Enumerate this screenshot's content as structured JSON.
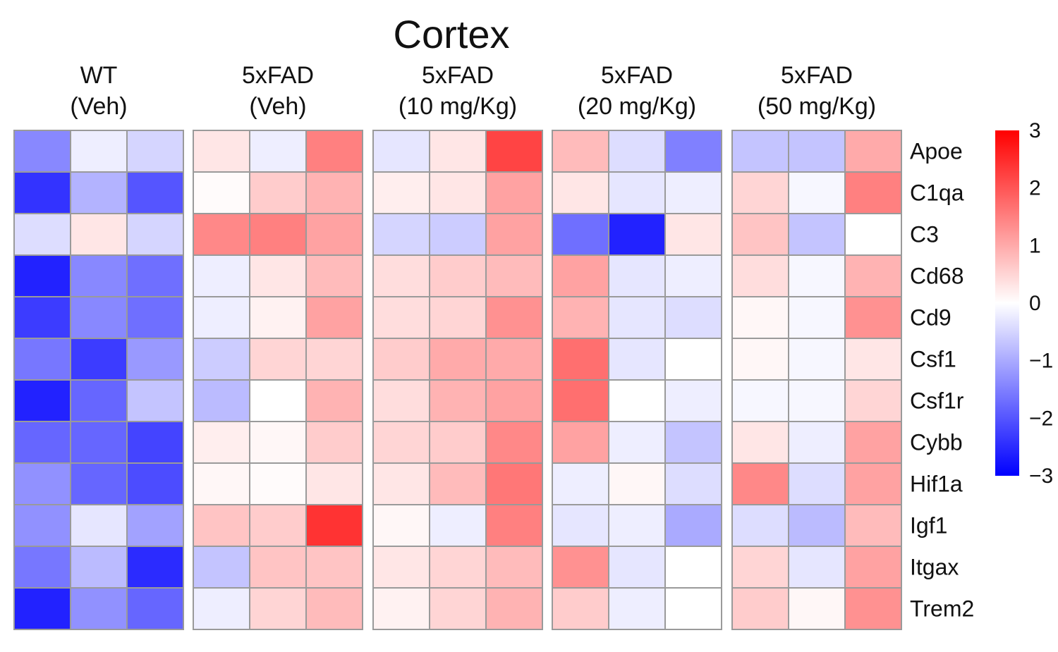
{
  "chart_data": {
    "type": "heatmap",
    "title": "Cortex",
    "genes": [
      "Apoe",
      "C1qa",
      "C3",
      "Cd68",
      "Cd9",
      "Csf1",
      "Csf1r",
      "Cybb",
      "Hif1a",
      "Igf1",
      "Itgax",
      "Trem2"
    ],
    "groups": [
      {
        "label_line1": "WT",
        "label_line2": "(Veh)",
        "values": [
          [
            -1.4,
            -0.2,
            -0.5
          ],
          [
            -2.4,
            -0.9,
            -2.0
          ],
          [
            -0.4,
            0.3,
            -0.5
          ],
          [
            -2.6,
            -1.4,
            -1.7
          ],
          [
            -2.3,
            -1.4,
            -1.7
          ],
          [
            -1.6,
            -2.3,
            -1.2
          ],
          [
            -2.6,
            -1.8,
            -0.7
          ],
          [
            -1.8,
            -1.8,
            -2.2
          ],
          [
            -1.3,
            -1.8,
            -2.1
          ],
          [
            -1.3,
            -0.3,
            -1.1
          ],
          [
            -1.6,
            -0.8,
            -2.5
          ],
          [
            -2.6,
            -1.3,
            -1.8
          ]
        ]
      },
      {
        "label_line1": "5xFAD",
        "label_line2": "(Veh)",
        "values": [
          [
            0.3,
            -0.2,
            1.5
          ],
          [
            0.05,
            0.6,
            0.9
          ],
          [
            1.4,
            1.5,
            1.1
          ],
          [
            -0.2,
            0.3,
            0.8
          ],
          [
            -0.2,
            0.15,
            1.1
          ],
          [
            -0.6,
            0.5,
            0.5
          ],
          [
            -0.8,
            0.0,
            0.9
          ],
          [
            0.2,
            0.1,
            0.6
          ],
          [
            0.1,
            0.05,
            0.3
          ],
          [
            0.7,
            0.6,
            2.4
          ],
          [
            -0.7,
            0.7,
            0.7
          ],
          [
            -0.2,
            0.5,
            0.8
          ]
        ]
      },
      {
        "label_line1": "5xFAD",
        "label_line2": "(10 mg/Kg)",
        "values": [
          [
            -0.3,
            0.3,
            2.2
          ],
          [
            0.2,
            0.3,
            1.1
          ],
          [
            -0.5,
            -0.6,
            1.1
          ],
          [
            0.4,
            0.6,
            0.8
          ],
          [
            0.4,
            0.5,
            1.3
          ],
          [
            0.6,
            1.0,
            1.0
          ],
          [
            0.4,
            0.9,
            1.1
          ],
          [
            0.5,
            0.6,
            1.4
          ],
          [
            0.3,
            0.8,
            1.6
          ],
          [
            0.1,
            -0.2,
            1.5
          ],
          [
            0.3,
            0.5,
            0.8
          ],
          [
            0.15,
            0.5,
            0.9
          ]
        ]
      },
      {
        "label_line1": "5xFAD",
        "label_line2": "(20 mg/Kg)",
        "values": [
          [
            0.8,
            -0.4,
            -1.5
          ],
          [
            0.3,
            -0.3,
            -0.2
          ],
          [
            -1.7,
            -2.6,
            0.3
          ],
          [
            1.1,
            -0.3,
            -0.2
          ],
          [
            0.9,
            -0.3,
            -0.4
          ],
          [
            1.7,
            -0.3,
            0.0
          ],
          [
            1.7,
            0.0,
            -0.2
          ],
          [
            1.1,
            -0.2,
            -0.7
          ],
          [
            -0.2,
            0.1,
            -0.4
          ],
          [
            -0.3,
            -0.2,
            -1.0
          ],
          [
            1.3,
            -0.3,
            0.0
          ],
          [
            0.6,
            -0.2,
            0.0
          ]
        ]
      },
      {
        "label_line1": "5xFAD",
        "label_line2": "(50 mg/Kg)",
        "values": [
          [
            -0.7,
            -0.7,
            1.0
          ],
          [
            0.5,
            -0.1,
            1.5
          ],
          [
            0.7,
            -0.7,
            0.0
          ],
          [
            0.4,
            -0.1,
            0.9
          ],
          [
            0.1,
            -0.1,
            1.3
          ],
          [
            0.1,
            -0.1,
            0.3
          ],
          [
            -0.1,
            -0.1,
            0.5
          ],
          [
            0.3,
            -0.2,
            1.1
          ],
          [
            1.4,
            -0.4,
            1.1
          ],
          [
            -0.4,
            -0.8,
            0.8
          ],
          [
            0.5,
            -0.3,
            1.1
          ],
          [
            0.6,
            0.1,
            1.3
          ]
        ]
      }
    ],
    "scale": {
      "min": -3,
      "max": 3,
      "ticks": [
        "3",
        "2",
        "1",
        "0",
        "−1",
        "−2",
        "−3"
      ],
      "colors": {
        "low": "#0000ff",
        "mid": "#ffffff",
        "high": "#ff0000"
      }
    }
  }
}
